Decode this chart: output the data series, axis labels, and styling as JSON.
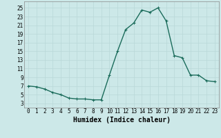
{
  "x": [
    0,
    1,
    2,
    3,
    4,
    5,
    6,
    7,
    8,
    9,
    10,
    11,
    12,
    13,
    14,
    15,
    16,
    17,
    18,
    19,
    20,
    21,
    22,
    23
  ],
  "y": [
    7,
    6.8,
    6.3,
    5.5,
    5.0,
    4.2,
    4.0,
    4.0,
    3.8,
    3.8,
    9.5,
    15,
    20,
    21.5,
    24.5,
    24,
    25,
    22,
    14,
    13.5,
    9.5,
    9.5,
    8.2,
    8.0
  ],
  "line_color": "#1a6b5a",
  "marker": "+",
  "marker_size": 3,
  "bg_color": "#cce8e8",
  "grid_color": "#b8d8d8",
  "xlabel": "Humidex (Indice chaleur)",
  "yticks": [
    3,
    5,
    7,
    9,
    11,
    13,
    15,
    17,
    19,
    21,
    23,
    25
  ],
  "xticks": [
    0,
    1,
    2,
    3,
    4,
    5,
    6,
    7,
    8,
    9,
    10,
    11,
    12,
    13,
    14,
    15,
    16,
    17,
    18,
    19,
    20,
    21,
    22,
    23
  ],
  "ylim": [
    2.0,
    26.5
  ],
  "xlim": [
    -0.5,
    23.5
  ],
  "xlabel_fontsize": 7,
  "tick_fontsize": 5.5,
  "linewidth": 1.0,
  "figsize": [
    3.2,
    2.0
  ],
  "dpi": 100
}
